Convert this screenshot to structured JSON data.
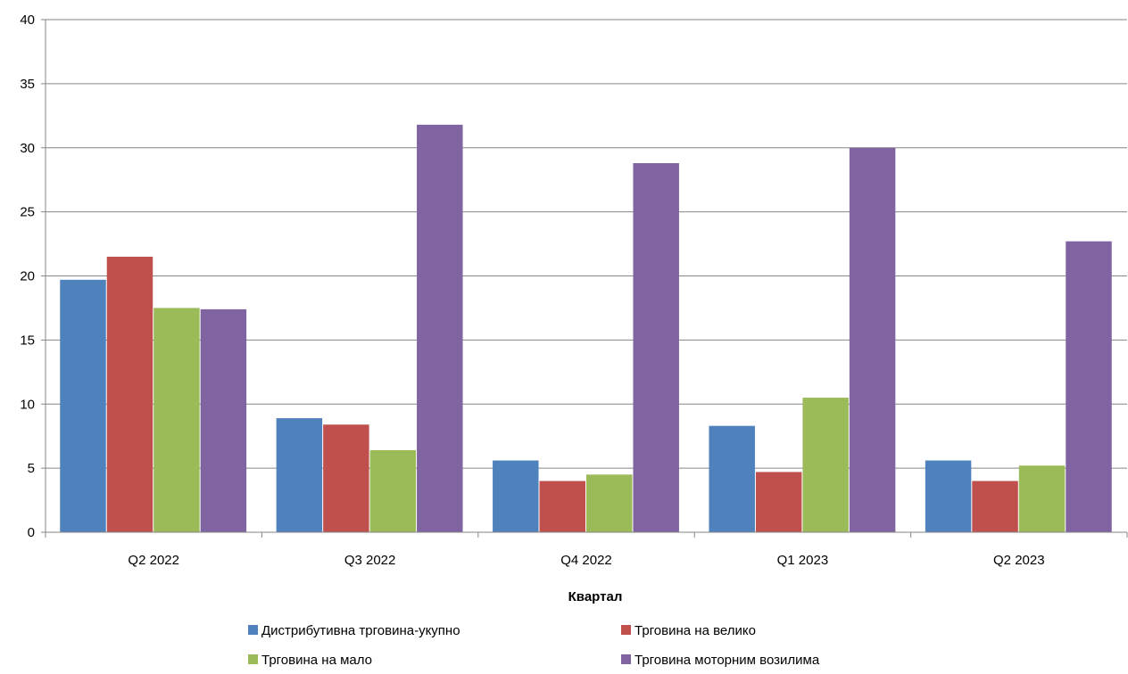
{
  "chart_data": {
    "type": "bar",
    "title": "",
    "xlabel": "Квартал",
    "ylabel": "",
    "ylim": [
      0,
      40
    ],
    "yticks": [
      0,
      5,
      10,
      15,
      20,
      25,
      30,
      35,
      40
    ],
    "grid": true,
    "legend_position": "bottom",
    "categories": [
      "Q2 2022",
      "Q3 2022",
      "Q4 2022",
      "Q1 2023",
      "Q2 2023"
    ],
    "series": [
      {
        "name": "Дистрибутивна трговина-укупно",
        "color": "#4F81BD",
        "values": [
          19.7,
          8.9,
          5.6,
          8.3,
          5.6
        ]
      },
      {
        "name": "Трговина на велико",
        "color": "#C0504D",
        "values": [
          21.5,
          8.4,
          4.0,
          4.7,
          4.0
        ]
      },
      {
        "name": "Трговина на мало",
        "color": "#9BBB59",
        "values": [
          17.5,
          6.4,
          4.5,
          10.5,
          5.2
        ]
      },
      {
        "name": "Трговина моторним возилима",
        "color": "#8064A2",
        "values": [
          17.4,
          31.8,
          28.8,
          30.0,
          22.7
        ]
      }
    ]
  }
}
